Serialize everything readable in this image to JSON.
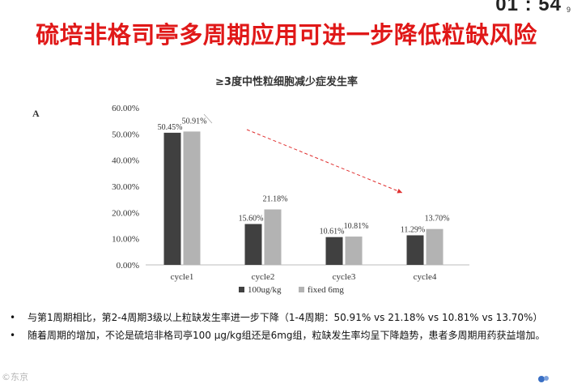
{
  "header": {
    "timer": "01 : 54",
    "page_number": "9",
    "title": "硫培非格司亭多周期应用可进一步降低粒缺风险"
  },
  "chart_data": {
    "type": "bar",
    "title": "≥3度中性粒细胞减少症发生率",
    "panel_label": "A",
    "categories": [
      "cycle1",
      "cycle2",
      "cycle3",
      "cycle4"
    ],
    "series": [
      {
        "name": "100ug/kg",
        "values": [
          50.45,
          15.6,
          10.61,
          11.29
        ],
        "labels": [
          "50.45%",
          "15.60%",
          "10.61%",
          "11.29%"
        ],
        "color": "#404040"
      },
      {
        "name": "fixed 6mg",
        "values": [
          50.91,
          21.18,
          10.81,
          13.7
        ],
        "labels": [
          "50.91%",
          "21.18%",
          "10.81%",
          "13.70%"
        ],
        "color": "#b3b3b3"
      }
    ],
    "ylim": [
      0,
      60
    ],
    "yticks": [
      "0.00%",
      "10.00%",
      "20.00%",
      "30.00%",
      "40.00%",
      "50.00%",
      "60.00%"
    ],
    "trend_arrow_color": "#e03030",
    "legend": "bottom"
  },
  "bullets": [
    "与第1周期相比，第2-4周期3级以上粒缺发生率进一步下降（1-4周期：50.91% vs 21.18% vs 10.81% vs 13.70%）",
    "随着周期的增加，不论是硫培非格司亭100 μg/kg组还是6mg组，粒缺发生率均呈下降趋势，患者多周期用药获益增加。"
  ],
  "watermark": "©东京"
}
